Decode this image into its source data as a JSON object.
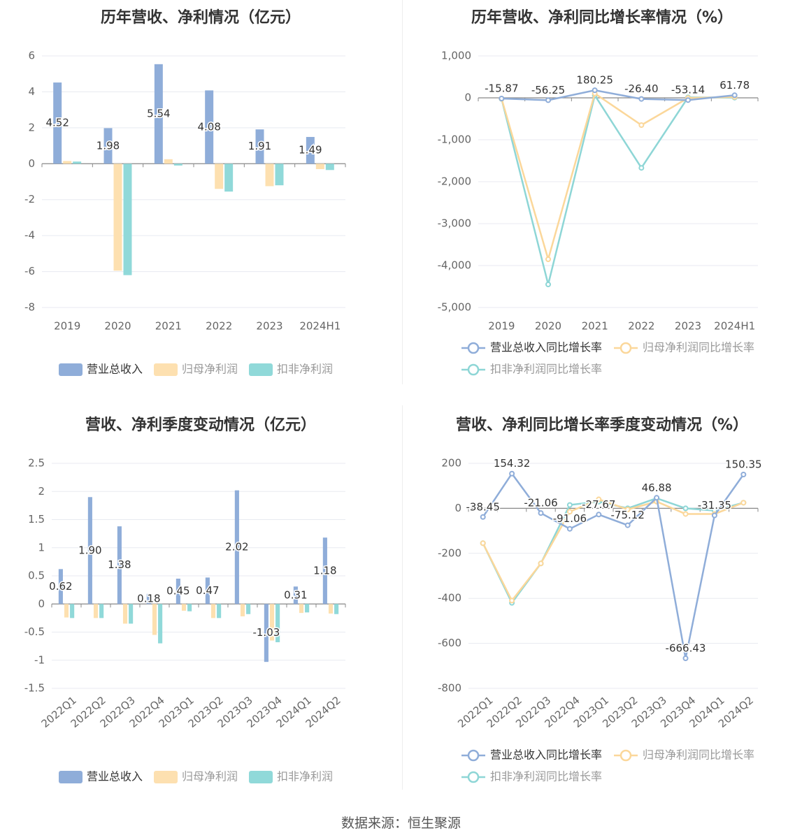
{
  "source_text": "数据来源：恒生聚源",
  "colors": {
    "revenue": "#8fadd9",
    "net_profit": "#fde0b0",
    "deducted_profit": "#90d9d9",
    "revenue_line": "#8fadd9",
    "net_profit_line": "#fbd79a",
    "deducted_line": "#8ed6d6",
    "grid": "#e8eaf0",
    "axis_text": "#666666",
    "title_text": "#333333"
  },
  "chart_data": [
    {
      "type": "bar",
      "title": "历年营收、净利情况（亿元）",
      "categories": [
        "2019",
        "2020",
        "2021",
        "2022",
        "2023",
        "2024H1"
      ],
      "series": [
        {
          "name": "营业总收入",
          "values": [
            4.52,
            1.98,
            5.54,
            4.08,
            1.91,
            1.49
          ]
        },
        {
          "name": "归母净利润",
          "values": [
            0.15,
            -5.95,
            0.25,
            -1.4,
            -1.25,
            -0.3
          ]
        },
        {
          "name": "扣非净利润",
          "values": [
            0.12,
            -6.2,
            -0.1,
            -1.55,
            -1.2,
            -0.35
          ]
        }
      ],
      "labeled_series": 0,
      "data_labels": [
        "4.52",
        "1.98",
        "5.54",
        "4.08",
        "1.91",
        "1.49"
      ],
      "ylim": [
        -8,
        6
      ],
      "yticks": [
        "6",
        "4",
        "2",
        "0",
        "-2",
        "-4",
        "-6",
        "-8"
      ],
      "ytick_values": [
        6,
        4,
        2,
        0,
        -2,
        -4,
        -6,
        -8
      ],
      "legend": "bottom"
    },
    {
      "type": "line",
      "title": "历年营收、净利同比增长率情况（%）",
      "categories": [
        "2019",
        "2020",
        "2021",
        "2022",
        "2023",
        "2024H1"
      ],
      "series": [
        {
          "name": "营业总收入同比增长率",
          "values": [
            -15.87,
            -56.25,
            180.25,
            -26.4,
            -53.14,
            61.78
          ]
        },
        {
          "name": "归母净利润同比增长率",
          "values": [
            -20,
            -3850,
            105,
            -650,
            -5,
            20
          ]
        },
        {
          "name": "扣非净利润同比增长率",
          "values": [
            -25,
            -4450,
            60,
            -1670,
            10,
            5
          ]
        }
      ],
      "labeled_series": 0,
      "data_labels": [
        "-15.87",
        "-56.25",
        "180.25",
        "-26.40",
        "-53.14",
        "61.78"
      ],
      "ylim": [
        -5000,
        1000
      ],
      "yticks": [
        "1,000",
        "0",
        "-1,000",
        "-2,000",
        "-3,000",
        "-4,000",
        "-5,000"
      ],
      "ytick_values": [
        1000,
        0,
        -1000,
        -2000,
        -3000,
        -4000,
        -5000
      ],
      "legend": "bottom"
    },
    {
      "type": "bar",
      "title": "营收、净利季度变动情况（亿元）",
      "categories": [
        "2022Q1",
        "2022Q2",
        "2022Q3",
        "2022Q4",
        "2023Q1",
        "2023Q2",
        "2023Q3",
        "2023Q4",
        "2024Q1",
        "2024Q2"
      ],
      "series": [
        {
          "name": "营业总收入",
          "values": [
            0.62,
            1.9,
            1.38,
            0.18,
            0.45,
            0.47,
            2.02,
            -1.03,
            0.31,
            1.18
          ]
        },
        {
          "name": "归母净利润",
          "values": [
            -0.24,
            -0.25,
            -0.35,
            -0.55,
            -0.12,
            -0.25,
            -0.22,
            -0.65,
            -0.16,
            -0.17
          ]
        },
        {
          "name": "扣非净利润",
          "values": [
            -0.25,
            -0.25,
            -0.35,
            -0.7,
            -0.13,
            -0.25,
            -0.18,
            -0.68,
            -0.15,
            -0.18
          ]
        }
      ],
      "labeled_series": 0,
      "data_labels": [
        "0.62",
        "1.90",
        "1.38",
        "0.18",
        "0.45",
        "0.47",
        "2.02",
        "-1.03",
        "0.31",
        "1.18"
      ],
      "ylim": [
        -1.5,
        2.5
      ],
      "yticks": [
        "2.5",
        "2",
        "1.5",
        "1",
        "0.5",
        "0",
        "-0.5",
        "-1",
        "-1.5"
      ],
      "ytick_values": [
        2.5,
        2,
        1.5,
        1,
        0.5,
        0,
        -0.5,
        -1,
        -1.5
      ],
      "legend": "bottom"
    },
    {
      "type": "line",
      "title": "营收、净利同比增长率季度变动情况（%）",
      "categories": [
        "2022Q1",
        "2022Q2",
        "2022Q3",
        "2022Q4",
        "2023Q1",
        "2023Q2",
        "2023Q3",
        "2023Q4",
        "2024Q1",
        "2024Q2"
      ],
      "series": [
        {
          "name": "营业总收入同比增长率",
          "values": [
            -38.45,
            154.32,
            -21.06,
            -91.06,
            -27.67,
            -75.12,
            46.88,
            -666.43,
            -31.35,
            150.35
          ]
        },
        {
          "name": "归母净利润同比增长率",
          "values": [
            -155,
            -410,
            -245,
            -15,
            40,
            -5,
            30,
            -25,
            -25,
            25
          ]
        },
        {
          "name": "扣非净利润同比增长率",
          "values": [
            -155,
            -420,
            -245,
            15,
            30,
            0,
            45,
            0,
            -10,
            25
          ]
        }
      ],
      "labeled_series": 0,
      "data_labels": [
        "-38.45",
        "154.32",
        "-21.06",
        "-91.06",
        "-27.67",
        "-75.12",
        "46.88",
        "-666.43",
        "-31.35",
        "150.35"
      ],
      "ylim": [
        -800,
        200
      ],
      "yticks": [
        "200",
        "0",
        "-200",
        "-400",
        "-600",
        "-800"
      ],
      "ytick_values": [
        200,
        0,
        -200,
        -400,
        -600,
        -800
      ],
      "legend": "bottom"
    }
  ]
}
